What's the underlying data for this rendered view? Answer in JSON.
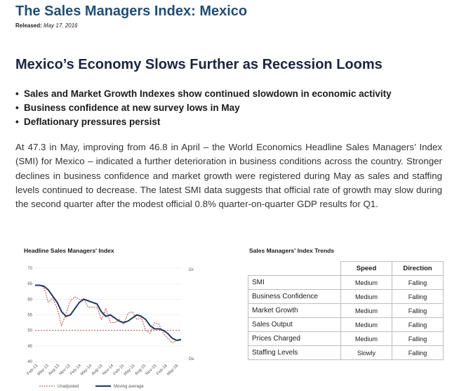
{
  "header": {
    "title": "The Sales Managers Index: Mexico",
    "released_label": "Released:",
    "released_date": "May 17, 2016"
  },
  "article": {
    "headline": "Mexico’s Economy Slows Further as Recession Looms",
    "bullets": [
      "Sales and Market Growth Indexes show continued slowdown in economic activity",
      "Business confidence at new survey lows in May",
      "Deflationary pressures persist"
    ],
    "paragraph": "At 47.3 in May, improving from 46.8 in April – the World Economics Headline Sales Managers’ Index (SMI) for Mexico – indicated a further deterioration in business conditions across the country. Stronger declines in business confidence and market growth were registered during May as sales and staffing levels continued to decrease. The latest SMI data suggests that official rate of growth may slow during the second quarter after the modest official 0.8% quarter-on-quarter GDP results for Q1."
  },
  "chart_data": {
    "type": "line",
    "title": "Headline Sales Managers' Index",
    "ylim": [
      40,
      70
    ],
    "yticks": [
      40,
      45,
      50,
      55,
      60,
      65,
      70
    ],
    "xticks": [
      "Feb-13",
      "May-13",
      "Aug-13",
      "Nov-13",
      "Feb-14",
      "May-14",
      "Aug-14",
      "Nov-14",
      "Feb-15",
      "May-15",
      "Aug-15",
      "Nov-15",
      "Feb-16",
      "May-16"
    ],
    "reference_line": 50,
    "annotations": {
      "growth": "Growth",
      "decline": "Decline"
    },
    "colors": {
      "unadjusted": "#c0392b",
      "moving_average": "#1f3864",
      "reference": "#c0392b"
    },
    "series": [
      {
        "name": "Unadjusted",
        "style": "dashed",
        "values": [
          64.5,
          64.5,
          63.8,
          59,
          60.5,
          57,
          51.5,
          55.5,
          59.5,
          60.8,
          60,
          60,
          57.5,
          57.5,
          57.5,
          53.5,
          57,
          52.5,
          52.5,
          53.5,
          52,
          55.5,
          56,
          53.5,
          54,
          50,
          49,
          52.5,
          52,
          49,
          47.5,
          46,
          46.8,
          47.3
        ]
      },
      {
        "name": "Moving average",
        "style": "solid",
        "values": [
          64.5,
          64.5,
          64.2,
          63,
          61,
          59,
          56,
          54.5,
          55,
          57,
          59,
          60,
          59.5,
          59,
          58.5,
          56,
          54.5,
          55,
          54,
          53,
          52.5,
          53,
          54,
          55,
          54.5,
          53.5,
          51.5,
          50.5,
          50.5,
          50,
          49,
          47.5,
          46.8,
          47
        ]
      }
    ]
  },
  "trends_table": {
    "title": "Sales Managers' Index Trends",
    "columns": [
      "Speed",
      "Direction"
    ],
    "rows": [
      {
        "label": "SMI",
        "speed": "Medium",
        "direction": "Falling"
      },
      {
        "label": "Business Confidence",
        "speed": "Medium",
        "direction": "Falling"
      },
      {
        "label": "Market Growth",
        "speed": "Medium",
        "direction": "Falling"
      },
      {
        "label": "Sales Output",
        "speed": "Medium",
        "direction": "Falling"
      },
      {
        "label": "Prices Charged",
        "speed": "Medium",
        "direction": "Falling"
      },
      {
        "label": "Staffing Levels",
        "speed": "Slowly",
        "direction": "Falling"
      }
    ]
  }
}
